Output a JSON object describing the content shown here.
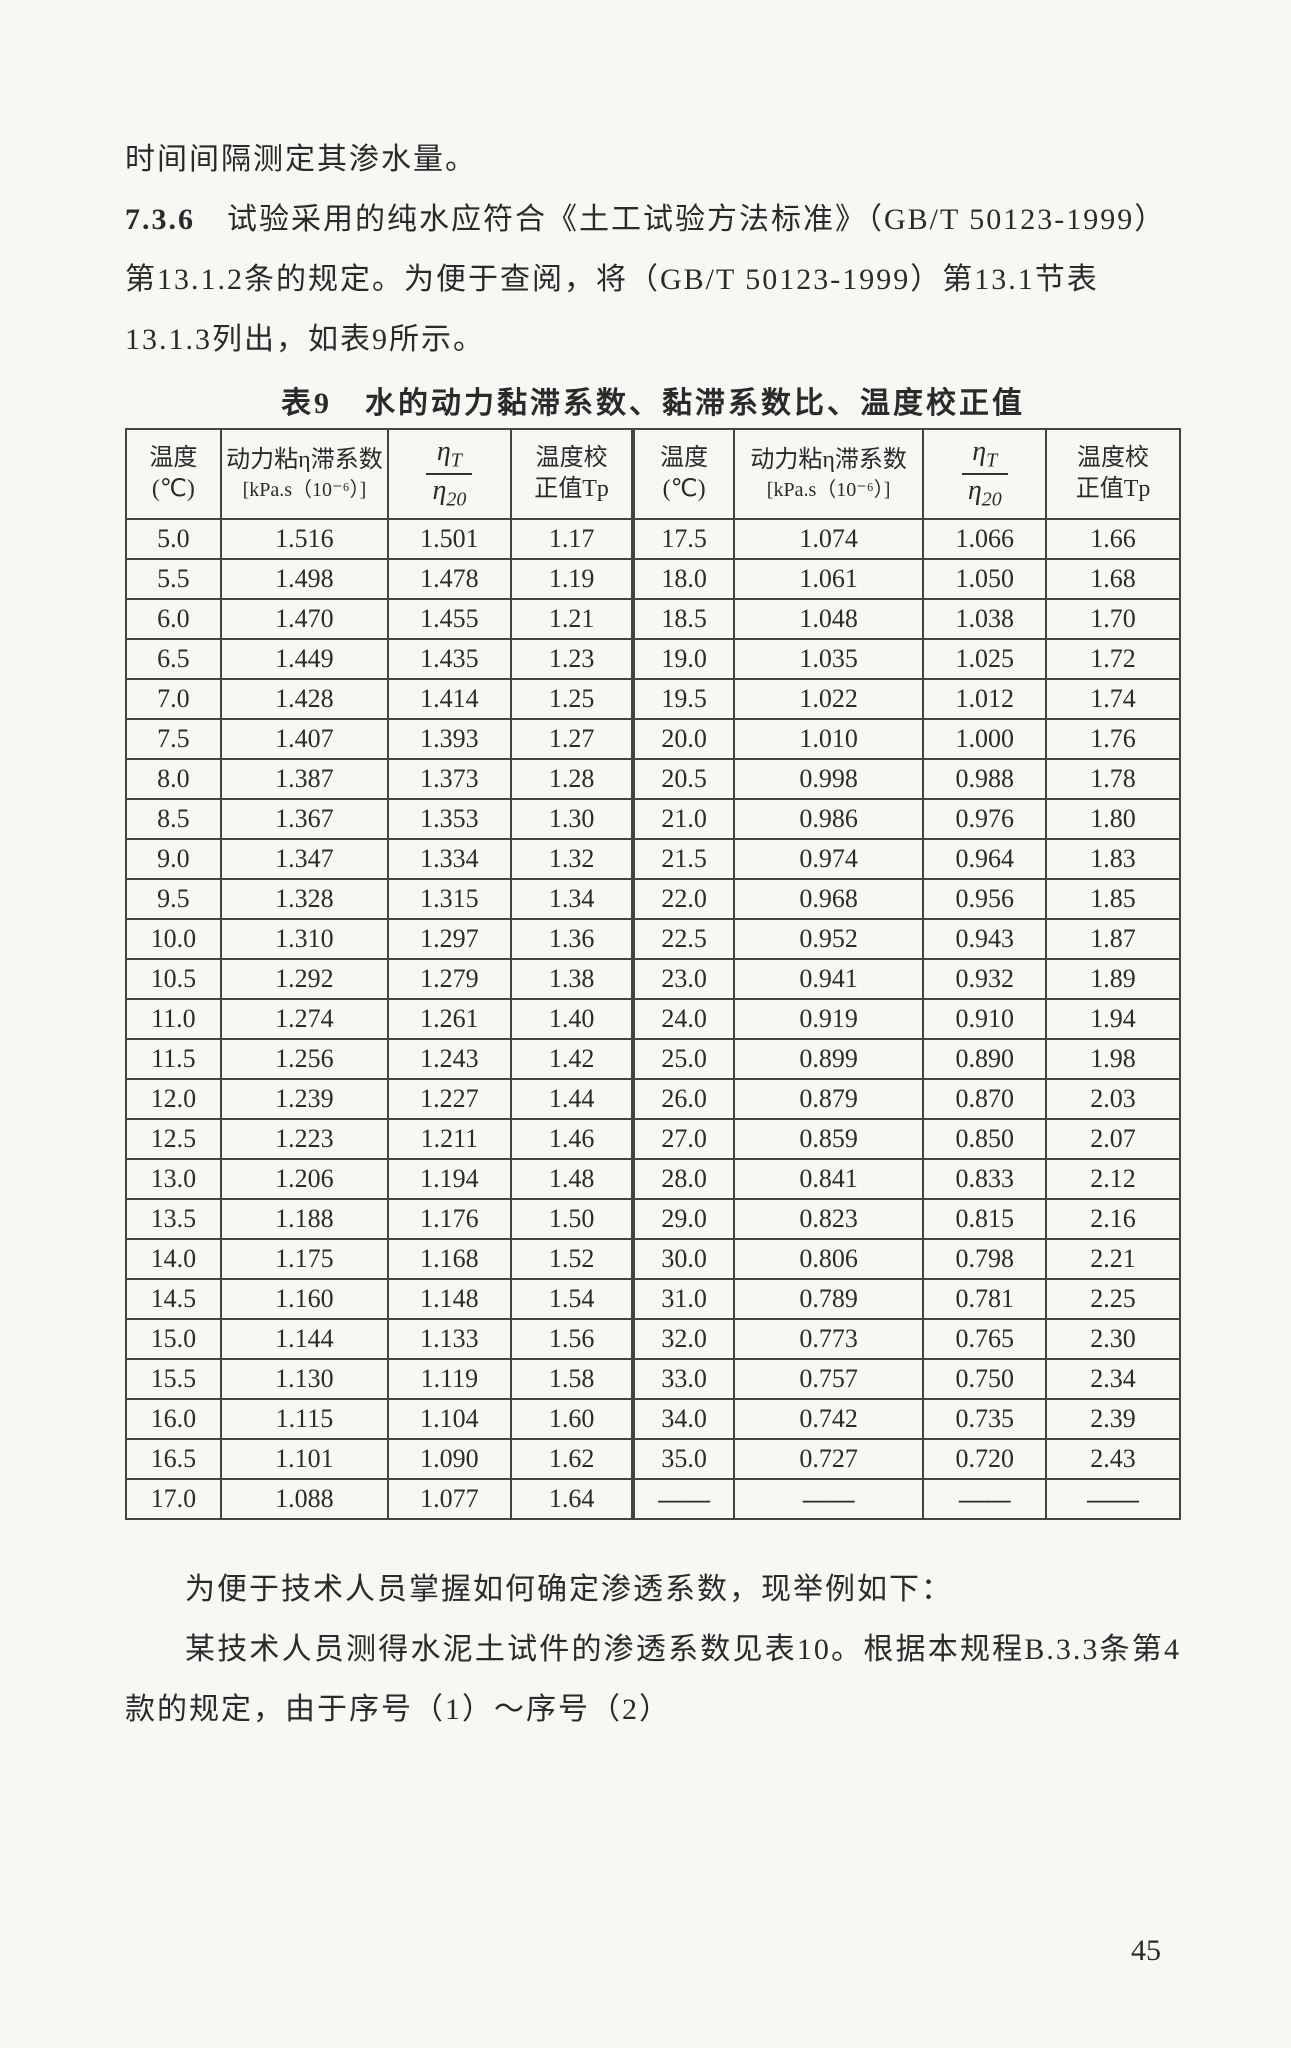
{
  "intro": {
    "line1": "时间间隔测定其渗水量。",
    "section_num": "7.3.6",
    "section_text": "试验采用的纯水应符合《土工试验方法标准》（GB/T 50123-1999）第13.1.2条的规定。为便于查阅，将（GB/T 50123-1999）第13.1节表13.1.3列出，如表9所示。"
  },
  "table": {
    "title": "表9　水的动力黏滞系数、黏滞系数比、温度校正值",
    "headers": {
      "temp": "温度",
      "temp_unit": "(℃)",
      "visc": "动力粘η滞系数",
      "visc_unit": "[kPa.s（10⁻⁶）]",
      "ratio_num": "η",
      "ratio_T": "T",
      "ratio_num2": "η",
      "ratio_20": "20",
      "corr": "温度校",
      "corr2": "正值Tp"
    },
    "left_rows": [
      [
        "5.0",
        "1.516",
        "1.501",
        "1.17"
      ],
      [
        "5.5",
        "1.498",
        "1.478",
        "1.19"
      ],
      [
        "6.0",
        "1.470",
        "1.455",
        "1.21"
      ],
      [
        "6.5",
        "1.449",
        "1.435",
        "1.23"
      ],
      [
        "7.0",
        "1.428",
        "1.414",
        "1.25"
      ],
      [
        "7.5",
        "1.407",
        "1.393",
        "1.27"
      ],
      [
        "8.0",
        "1.387",
        "1.373",
        "1.28"
      ],
      [
        "8.5",
        "1.367",
        "1.353",
        "1.30"
      ],
      [
        "9.0",
        "1.347",
        "1.334",
        "1.32"
      ],
      [
        "9.5",
        "1.328",
        "1.315",
        "1.34"
      ],
      [
        "10.0",
        "1.310",
        "1.297",
        "1.36"
      ],
      [
        "10.5",
        "1.292",
        "1.279",
        "1.38"
      ],
      [
        "11.0",
        "1.274",
        "1.261",
        "1.40"
      ],
      [
        "11.5",
        "1.256",
        "1.243",
        "1.42"
      ],
      [
        "12.0",
        "1.239",
        "1.227",
        "1.44"
      ],
      [
        "12.5",
        "1.223",
        "1.211",
        "1.46"
      ],
      [
        "13.0",
        "1.206",
        "1.194",
        "1.48"
      ],
      [
        "13.5",
        "1.188",
        "1.176",
        "1.50"
      ],
      [
        "14.0",
        "1.175",
        "1.168",
        "1.52"
      ],
      [
        "14.5",
        "1.160",
        "1.148",
        "1.54"
      ],
      [
        "15.0",
        "1.144",
        "1.133",
        "1.56"
      ],
      [
        "15.5",
        "1.130",
        "1.119",
        "1.58"
      ],
      [
        "16.0",
        "1.115",
        "1.104",
        "1.60"
      ],
      [
        "16.5",
        "1.101",
        "1.090",
        "1.62"
      ],
      [
        "17.0",
        "1.088",
        "1.077",
        "1.64"
      ]
    ],
    "right_rows": [
      [
        "17.5",
        "1.074",
        "1.066",
        "1.66"
      ],
      [
        "18.0",
        "1.061",
        "1.050",
        "1.68"
      ],
      [
        "18.5",
        "1.048",
        "1.038",
        "1.70"
      ],
      [
        "19.0",
        "1.035",
        "1.025",
        "1.72"
      ],
      [
        "19.5",
        "1.022",
        "1.012",
        "1.74"
      ],
      [
        "20.0",
        "1.010",
        "1.000",
        "1.76"
      ],
      [
        "20.5",
        "0.998",
        "0.988",
        "1.78"
      ],
      [
        "21.0",
        "0.986",
        "0.976",
        "1.80"
      ],
      [
        "21.5",
        "0.974",
        "0.964",
        "1.83"
      ],
      [
        "22.0",
        "0.968",
        "0.956",
        "1.85"
      ],
      [
        "22.5",
        "0.952",
        "0.943",
        "1.87"
      ],
      [
        "23.0",
        "0.941",
        "0.932",
        "1.89"
      ],
      [
        "24.0",
        "0.919",
        "0.910",
        "1.94"
      ],
      [
        "25.0",
        "0.899",
        "0.890",
        "1.98"
      ],
      [
        "26.0",
        "0.879",
        "0.870",
        "2.03"
      ],
      [
        "27.0",
        "0.859",
        "0.850",
        "2.07"
      ],
      [
        "28.0",
        "0.841",
        "0.833",
        "2.12"
      ],
      [
        "29.0",
        "0.823",
        "0.815",
        "2.16"
      ],
      [
        "30.0",
        "0.806",
        "0.798",
        "2.21"
      ],
      [
        "31.0",
        "0.789",
        "0.781",
        "2.25"
      ],
      [
        "32.0",
        "0.773",
        "0.765",
        "2.30"
      ],
      [
        "33.0",
        "0.757",
        "0.750",
        "2.34"
      ],
      [
        "34.0",
        "0.742",
        "0.735",
        "2.39"
      ],
      [
        "35.0",
        "0.727",
        "0.720",
        "2.43"
      ],
      [
        "——",
        "——",
        "——",
        "——"
      ]
    ]
  },
  "footer": {
    "p1": "为便于技术人员掌握如何确定渗透系数，现举例如下：",
    "p2": "某技术人员测得水泥土试件的渗透系数见表10。根据本规程B.3.3条第4款的规定，由于序号（1）～序号（2）"
  },
  "page": "45"
}
